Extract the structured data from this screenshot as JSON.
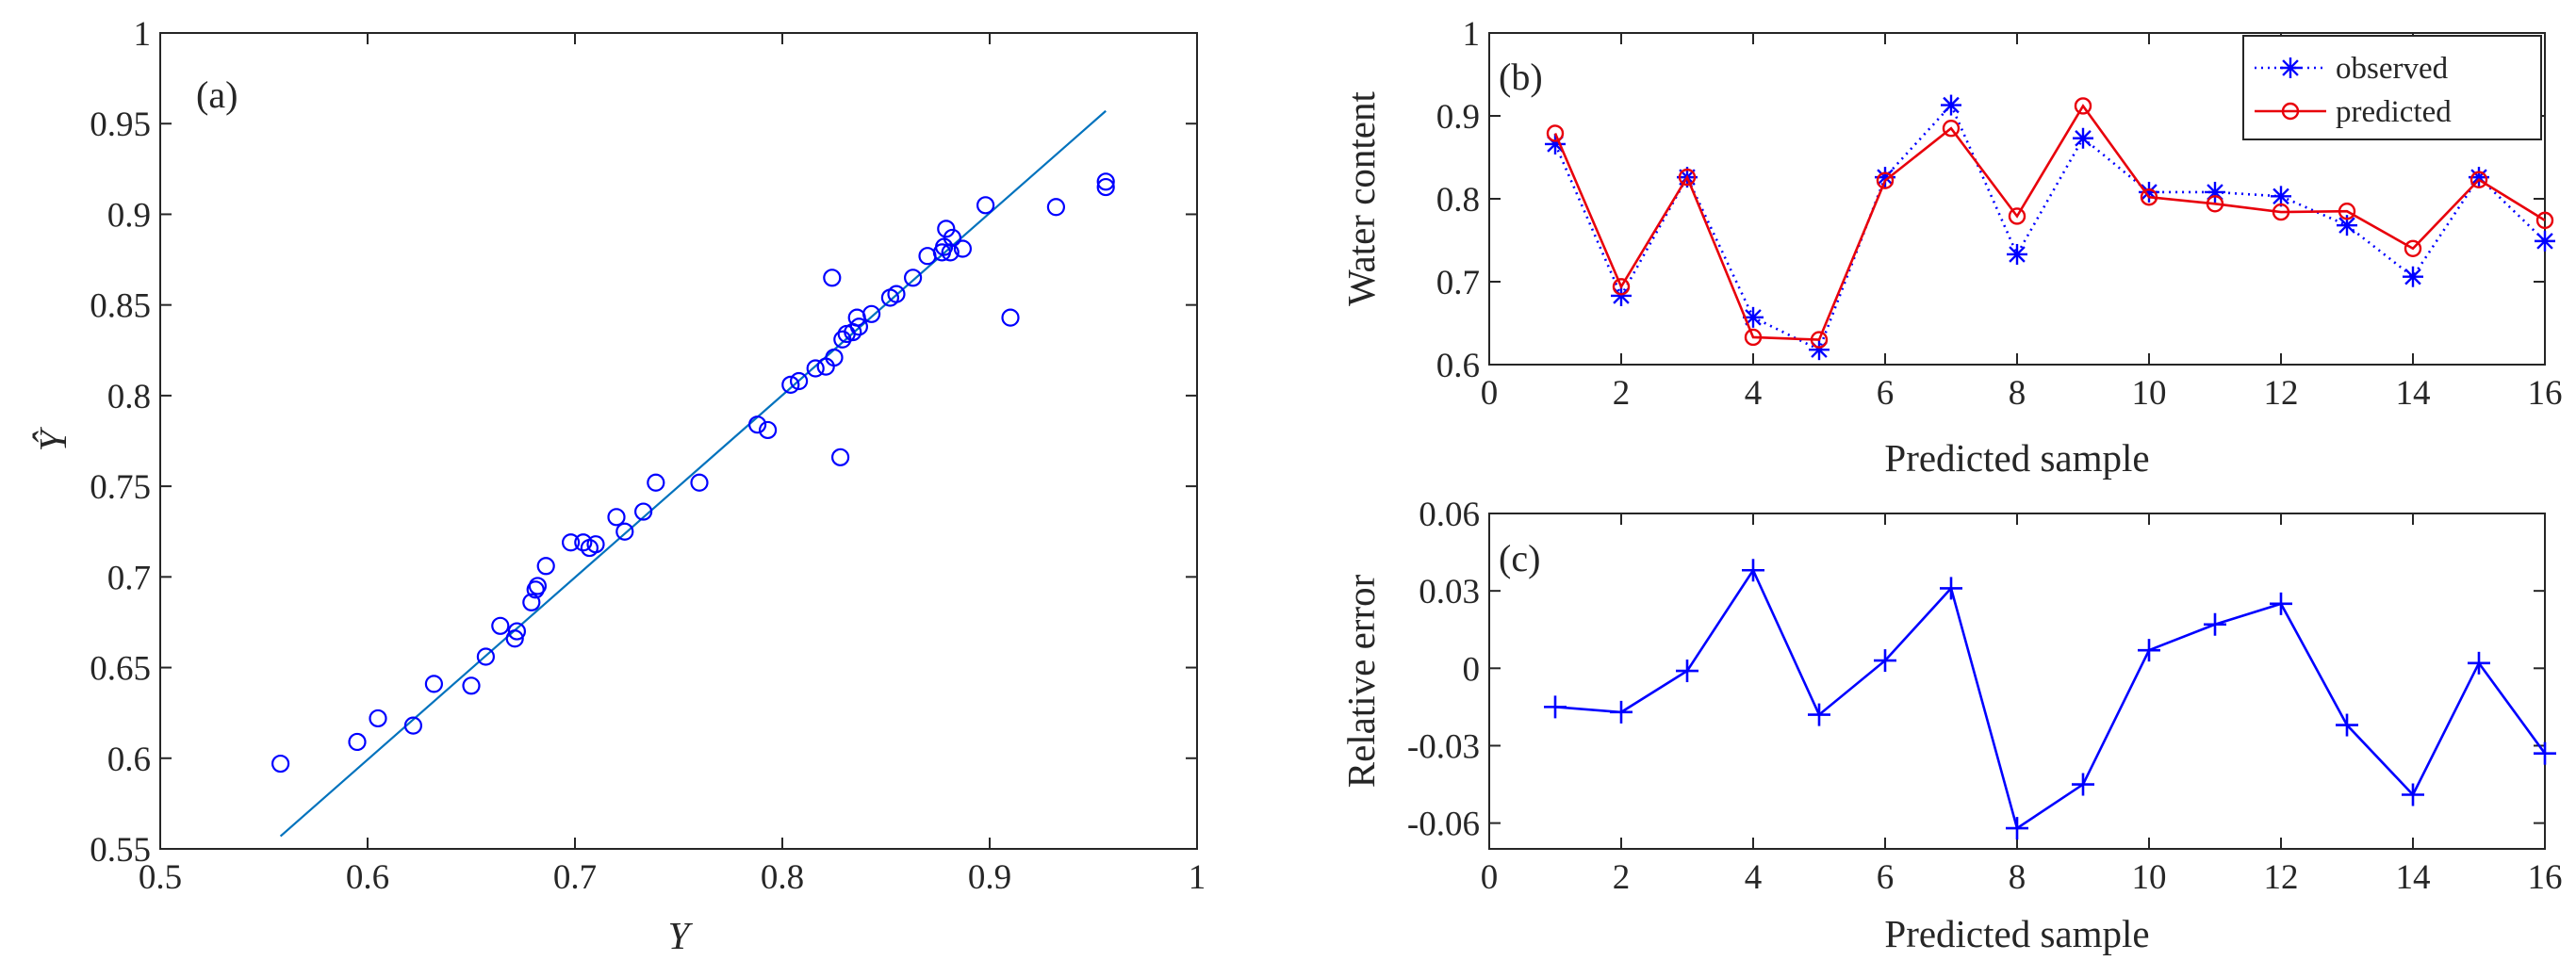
{
  "chart_data": [
    {
      "type": "scatter",
      "panel_label": "(a)",
      "xlabel": "Y",
      "ylabel": "Ŷ",
      "xlim": [
        0.5,
        1
      ],
      "ylim": [
        0.55,
        1
      ],
      "x_ticks": [
        "0.5",
        "0.6",
        "0.7",
        "0.8",
        "0.9",
        "1"
      ],
      "y_ticks": [
        "0.55",
        "0.6",
        "0.65",
        "0.7",
        "0.75",
        "0.8",
        "0.85",
        "0.9",
        "0.95",
        "1"
      ],
      "colors": {
        "points": "#0000ff",
        "fit_line": "#0072bd"
      },
      "fit_line": {
        "x": [
          0.558,
          0.956
        ],
        "y": [
          0.557,
          0.957
        ]
      },
      "points": [
        {
          "x": 0.558,
          "y": 0.597
        },
        {
          "x": 0.595,
          "y": 0.609
        },
        {
          "x": 0.605,
          "y": 0.622
        },
        {
          "x": 0.622,
          "y": 0.618
        },
        {
          "x": 0.632,
          "y": 0.641
        },
        {
          "x": 0.65,
          "y": 0.64
        },
        {
          "x": 0.657,
          "y": 0.656
        },
        {
          "x": 0.664,
          "y": 0.673
        },
        {
          "x": 0.671,
          "y": 0.666
        },
        {
          "x": 0.672,
          "y": 0.67
        },
        {
          "x": 0.679,
          "y": 0.686
        },
        {
          "x": 0.681,
          "y": 0.693
        },
        {
          "x": 0.682,
          "y": 0.695
        },
        {
          "x": 0.686,
          "y": 0.706
        },
        {
          "x": 0.698,
          "y": 0.719
        },
        {
          "x": 0.704,
          "y": 0.719
        },
        {
          "x": 0.707,
          "y": 0.716
        },
        {
          "x": 0.71,
          "y": 0.718
        },
        {
          "x": 0.72,
          "y": 0.733
        },
        {
          "x": 0.724,
          "y": 0.725
        },
        {
          "x": 0.733,
          "y": 0.736
        },
        {
          "x": 0.739,
          "y": 0.752
        },
        {
          "x": 0.76,
          "y": 0.752
        },
        {
          "x": 0.788,
          "y": 0.784
        },
        {
          "x": 0.793,
          "y": 0.781
        },
        {
          "x": 0.804,
          "y": 0.806
        },
        {
          "x": 0.808,
          "y": 0.808
        },
        {
          "x": 0.816,
          "y": 0.815
        },
        {
          "x": 0.821,
          "y": 0.816
        },
        {
          "x": 0.825,
          "y": 0.821
        },
        {
          "x": 0.824,
          "y": 0.865
        },
        {
          "x": 0.828,
          "y": 0.766
        },
        {
          "x": 0.829,
          "y": 0.831
        },
        {
          "x": 0.831,
          "y": 0.834
        },
        {
          "x": 0.834,
          "y": 0.835
        },
        {
          "x": 0.836,
          "y": 0.843
        },
        {
          "x": 0.837,
          "y": 0.838
        },
        {
          "x": 0.843,
          "y": 0.845
        },
        {
          "x": 0.852,
          "y": 0.854
        },
        {
          "x": 0.855,
          "y": 0.856
        },
        {
          "x": 0.863,
          "y": 0.865
        },
        {
          "x": 0.87,
          "y": 0.877
        },
        {
          "x": 0.877,
          "y": 0.879
        },
        {
          "x": 0.878,
          "y": 0.882
        },
        {
          "x": 0.879,
          "y": 0.892
        },
        {
          "x": 0.882,
          "y": 0.887
        },
        {
          "x": 0.881,
          "y": 0.879
        },
        {
          "x": 0.887,
          "y": 0.881
        },
        {
          "x": 0.898,
          "y": 0.905
        },
        {
          "x": 0.91,
          "y": 0.843
        },
        {
          "x": 0.932,
          "y": 0.904
        },
        {
          "x": 0.956,
          "y": 0.918
        },
        {
          "x": 0.956,
          "y": 0.915
        }
      ]
    },
    {
      "type": "line",
      "panel_label": "(b)",
      "xlabel": "Predicted sample",
      "ylabel": "Water content",
      "xlim": [
        0,
        16
      ],
      "ylim": [
        0.6,
        1
      ],
      "x_ticks": [
        "0",
        "2",
        "4",
        "6",
        "8",
        "10",
        "12",
        "14",
        "16"
      ],
      "y_ticks": [
        "0.6",
        "0.7",
        "0.8",
        "0.9",
        "1"
      ],
      "legend_position": "top-right",
      "x": [
        1,
        2,
        3,
        4,
        5,
        6,
        7,
        8,
        9,
        10,
        11,
        12,
        13,
        14,
        15,
        16
      ],
      "series": [
        {
          "name": "observed",
          "color": "#0000ff",
          "line_style": "dotted",
          "marker": "asterisk",
          "values": [
            0.866,
            0.683,
            0.826,
            0.657,
            0.618,
            0.826,
            0.913,
            0.733,
            0.873,
            0.808,
            0.808,
            0.803,
            0.768,
            0.706,
            0.826,
            0.749
          ]
        },
        {
          "name": "predicted",
          "color": "#e8000b",
          "line_style": "solid",
          "marker": "circle",
          "values": [
            0.879,
            0.694,
            0.826,
            0.633,
            0.63,
            0.822,
            0.885,
            0.779,
            0.912,
            0.802,
            0.794,
            0.784,
            0.785,
            0.74,
            0.823,
            0.774
          ]
        }
      ]
    },
    {
      "type": "line",
      "panel_label": "(c)",
      "xlabel": "Predicted sample",
      "ylabel": "Relative error",
      "xlim": [
        0,
        16
      ],
      "ylim": [
        -0.07,
        0.06
      ],
      "x_ticks": [
        "0",
        "2",
        "4",
        "6",
        "8",
        "10",
        "12",
        "14",
        "16"
      ],
      "y_ticks": [
        "-0.06",
        "-0.03",
        "0",
        "0.03",
        "0.06"
      ],
      "x": [
        1,
        2,
        3,
        4,
        5,
        6,
        7,
        8,
        9,
        10,
        11,
        12,
        13,
        14,
        15,
        16
      ],
      "series": [
        {
          "color": "#0000ff",
          "line_style": "solid",
          "marker": "plus",
          "values": [
            -0.015,
            -0.017,
            -0.001,
            0.038,
            -0.018,
            0.003,
            0.031,
            -0.062,
            -0.045,
            0.007,
            0.017,
            0.025,
            -0.022,
            -0.049,
            0.002,
            -0.033
          ]
        }
      ]
    }
  ]
}
